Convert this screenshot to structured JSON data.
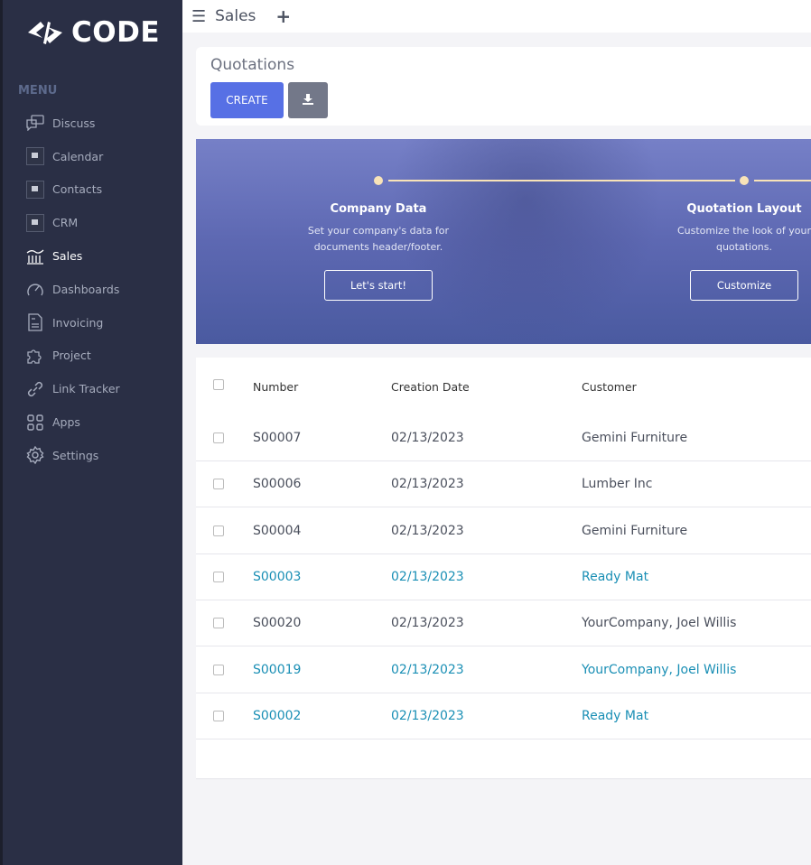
{
  "brand": {
    "name": "CODE"
  },
  "sidebar": {
    "menu_title": "MENU",
    "items": [
      {
        "label": "Discuss",
        "icon": "chat-icon"
      },
      {
        "label": "Calendar",
        "icon": "app-placeholder-icon"
      },
      {
        "label": "Contacts",
        "icon": "app-placeholder-icon"
      },
      {
        "label": "CRM",
        "icon": "app-placeholder-icon"
      },
      {
        "label": "Sales",
        "icon": "bank-chart-icon",
        "active": true
      },
      {
        "label": "Dashboards",
        "icon": "speedometer-icon"
      },
      {
        "label": "Invoicing",
        "icon": "invoice-icon"
      },
      {
        "label": "Project",
        "icon": "puzzle-icon"
      },
      {
        "label": "Link Tracker",
        "icon": "link-icon"
      },
      {
        "label": "Apps",
        "icon": "grid-icon"
      },
      {
        "label": "Settings",
        "icon": "gear-icon"
      }
    ]
  },
  "topbar": {
    "title": "Sales",
    "add": "+"
  },
  "control_panel": {
    "title": "Quotations",
    "create_label": "CREATE"
  },
  "onboarding": {
    "steps": [
      {
        "title": "Company Data",
        "desc1": "Set your company's data for",
        "desc2": "documents header/footer.",
        "button": "Let's start!"
      },
      {
        "title": "Quotation Layout",
        "desc1": "Customize the look of your",
        "desc2": "quotations.",
        "button": "Customize"
      }
    ]
  },
  "table": {
    "headers": [
      "Number",
      "Creation Date",
      "Customer"
    ],
    "rows": [
      {
        "number": "S00007",
        "date": "02/13/2023",
        "customer": "Gemini Furniture",
        "highlight": false
      },
      {
        "number": "S00006",
        "date": "02/13/2023",
        "customer": "Lumber Inc",
        "highlight": false
      },
      {
        "number": "S00004",
        "date": "02/13/2023",
        "customer": "Gemini Furniture",
        "highlight": false
      },
      {
        "number": "S00003",
        "date": "02/13/2023",
        "customer": "Ready Mat",
        "highlight": true
      },
      {
        "number": "S00020",
        "date": "02/13/2023",
        "customer": "YourCompany, Joel Willis",
        "highlight": false
      },
      {
        "number": "S00019",
        "date": "02/13/2023",
        "customer": "YourCompany, Joel Willis",
        "highlight": true
      },
      {
        "number": "S00002",
        "date": "02/13/2023",
        "customer": "Ready Mat",
        "highlight": true
      }
    ]
  },
  "colors": {
    "sidebar": "#2a2f45",
    "accent": "#5770e5",
    "link": "#1a8fb5"
  }
}
